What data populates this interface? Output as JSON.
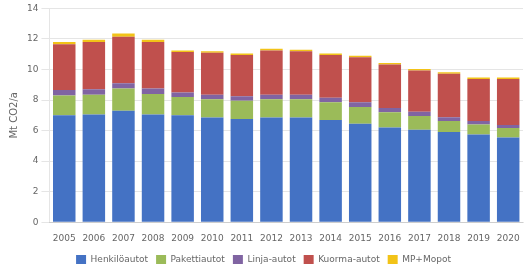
{
  "chart_data": {
    "type": "bar",
    "stacked": true,
    "categories": [
      "2005",
      "2006",
      "2007",
      "2008",
      "2009",
      "2010",
      "2011",
      "2012",
      "2013",
      "2014",
      "2015",
      "2016",
      "2017",
      "2018",
      "2019",
      "2020"
    ],
    "series": [
      {
        "name": "Henkilöautot",
        "color": "#4472C4",
        "values": [
          7.0,
          7.05,
          7.3,
          7.05,
          7.0,
          6.85,
          6.75,
          6.85,
          6.85,
          6.7,
          6.45,
          6.2,
          6.05,
          5.9,
          5.75,
          5.55
        ]
      },
      {
        "name": "Pakettiautot",
        "color": "#9BBB59",
        "values": [
          1.3,
          1.3,
          1.45,
          1.35,
          1.2,
          1.2,
          1.2,
          1.2,
          1.2,
          1.15,
          1.1,
          1.0,
          0.9,
          0.72,
          0.65,
          0.62
        ]
      },
      {
        "name": "Linja-autot",
        "color": "#8064A2",
        "values": [
          0.35,
          0.35,
          0.35,
          0.35,
          0.3,
          0.3,
          0.3,
          0.3,
          0.3,
          0.3,
          0.3,
          0.28,
          0.28,
          0.25,
          0.22,
          0.2
        ]
      },
      {
        "name": "Kuorma-autot",
        "color": "#C0504D",
        "values": [
          3.0,
          3.1,
          3.05,
          3.05,
          2.65,
          2.75,
          2.7,
          2.9,
          2.85,
          2.8,
          2.95,
          2.85,
          2.7,
          2.85,
          2.75,
          3.0
        ]
      },
      {
        "name": "MP+Mopot",
        "color": "#F2C318",
        "values": [
          0.15,
          0.15,
          0.2,
          0.15,
          0.1,
          0.1,
          0.1,
          0.1,
          0.1,
          0.1,
          0.1,
          0.1,
          0.1,
          0.1,
          0.1,
          0.1
        ]
      }
    ],
    "ylabel": "Mt CO2/a",
    "ylim": [
      0,
      14
    ],
    "yticks": [
      0,
      2,
      4,
      6,
      8,
      10,
      12,
      14
    ],
    "grid": true,
    "legend": "bottom"
  }
}
